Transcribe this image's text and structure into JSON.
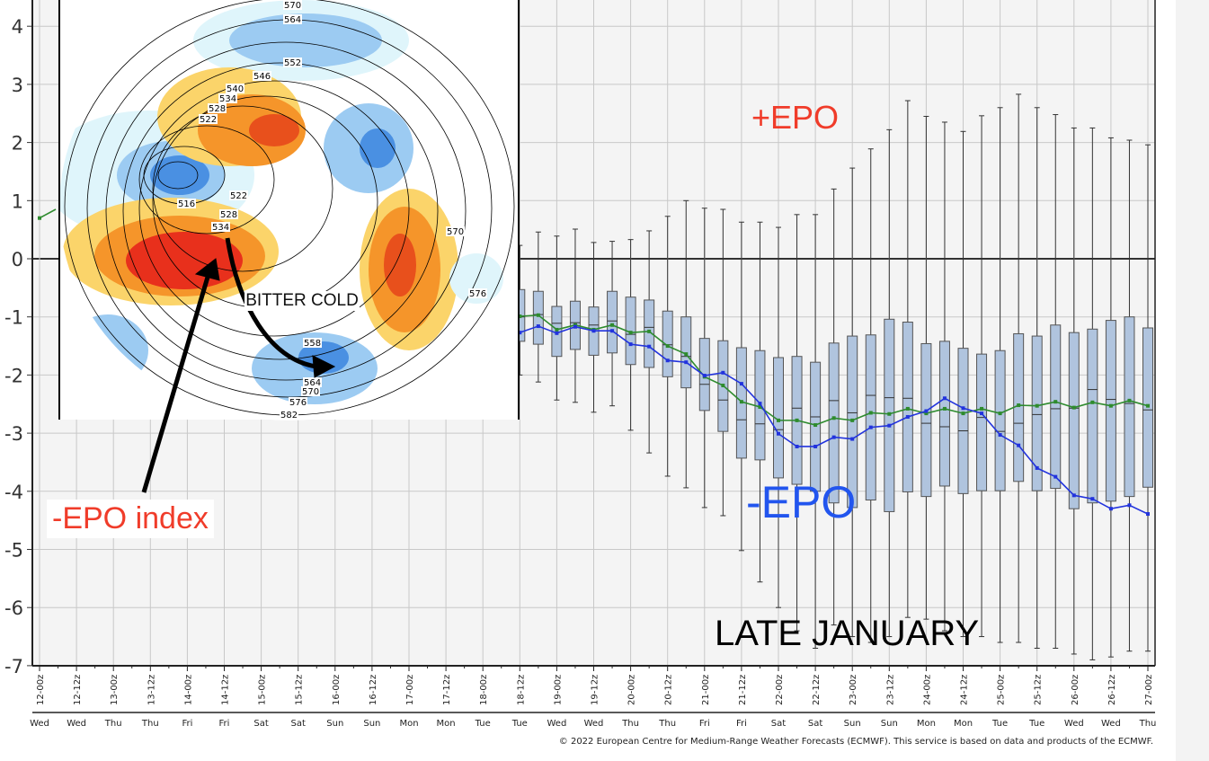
{
  "annotations": {
    "plus_epo": "+EPO",
    "minus_epo": "-EPO",
    "epo_index": "-EPO index",
    "late_january": "LATE JANUARY",
    "bitter_cold": "BITTER COLD"
  },
  "inset_map": {
    "contour_labels": [
      "570",
      "564",
      "552",
      "546",
      "540",
      "534",
      "528",
      "522",
      "516",
      "522",
      "528",
      "534",
      "570",
      "576",
      "558",
      "564",
      "570",
      "576",
      "582"
    ],
    "colors": {
      "warm_strong": "#e8301c",
      "warm": "#f5952a",
      "warm_light": "#fbd46a",
      "cold_strong": "#4a90e2",
      "cold": "#9ccbf2",
      "cold_light": "#dff5fb"
    }
  },
  "footer": {
    "copyright": "© 2022 European Centre for Medium-Range Weather Forecasts (ECMWF). This service is based on data and products of the ECMWF."
  },
  "colors": {
    "box_fill": "#b0c4de",
    "box_stroke": "#555555",
    "green_series": "#2e8b2e",
    "blue_series": "#2233dd",
    "plot_bg": "#f4f4f4",
    "grid": "#c8c8c8"
  },
  "chart_data": {
    "type": "box",
    "title": "",
    "xlabel": "",
    "ylabel": "",
    "ylim": [
      -7,
      4.4
    ],
    "yticks": [
      4,
      3,
      2,
      1,
      0,
      -1,
      -2,
      -3,
      -4,
      -5,
      -6,
      -7
    ],
    "grid": true,
    "x_tick_labels": [
      "12-00z",
      "12-12z",
      "13-00z",
      "13-12z",
      "14-00z",
      "14-12z",
      "15-00z",
      "15-12z",
      "16-00z",
      "16-12z",
      "17-00z",
      "17-12z",
      "18-00z",
      "18-12z",
      "19-00z",
      "19-12z",
      "20-00z",
      "20-12z",
      "21-00z",
      "21-12z",
      "22-00z",
      "22-12z",
      "23-00z",
      "23-12z",
      "24-00z",
      "24-12z",
      "25-00z",
      "25-12z",
      "26-00z",
      "26-12z",
      "27-00z"
    ],
    "x_day_labels": [
      "Wed",
      "Wed",
      "Thu",
      "Thu",
      "Fri",
      "Fri",
      "Sat",
      "Sat",
      "Sun",
      "Sun",
      "Mon",
      "Mon",
      "Tue",
      "Tue",
      "Wed",
      "Wed",
      "Thu",
      "Thu",
      "Fri",
      "Fri",
      "Sat",
      "Sat",
      "Sun",
      "Sun",
      "Mon",
      "Mon",
      "Tue",
      "Tue",
      "Wed",
      "Wed",
      "Thu"
    ],
    "step_hours": 6,
    "first_step_index": 26,
    "boxes": {
      "whisker_high": [
        0.23,
        0.46,
        0.39,
        0.51,
        0.28,
        0.3,
        0.33,
        0.48,
        0.73,
        1.0,
        0.87,
        0.85,
        0.63,
        0.63,
        0.54,
        0.76,
        0.76,
        1.2,
        1.56,
        1.89,
        2.22,
        2.72,
        2.45,
        2.35,
        2.19,
        2.46,
        2.6,
        2.83,
        2.6,
        2.48,
        2.25,
        2.25,
        2.08,
        2.04,
        1.96
      ],
      "q3": [
        -0.53,
        -0.56,
        -0.82,
        -0.73,
        -0.83,
        -0.56,
        -0.66,
        -0.71,
        -0.9,
        -1.0,
        -1.37,
        -1.41,
        -1.53,
        -1.58,
        -1.7,
        -1.68,
        -1.78,
        -1.45,
        -1.33,
        -1.31,
        -1.04,
        -1.09,
        -1.46,
        -1.42,
        -1.54,
        -1.64,
        -1.58,
        -1.29,
        -1.33,
        -1.14,
        -1.27,
        -1.21,
        -1.06,
        -1.0,
        -1.19
      ],
      "median": [
        -1.0,
        -0.96,
        -1.11,
        -1.1,
        -1.14,
        -1.07,
        -1.3,
        -1.18,
        -1.48,
        -1.68,
        -2.16,
        -2.43,
        -2.77,
        -2.84,
        -2.94,
        -2.57,
        -2.72,
        -2.44,
        -2.65,
        -2.35,
        -2.39,
        -2.4,
        -2.83,
        -2.89,
        -2.96,
        -2.73,
        -2.97,
        -2.83,
        -2.68,
        -2.58,
        -2.57,
        -2.25,
        -2.42,
        -2.49,
        -2.6
      ],
      "q1": [
        -1.42,
        -1.47,
        -1.68,
        -1.56,
        -1.66,
        -1.62,
        -1.82,
        -1.87,
        -2.03,
        -2.22,
        -2.61,
        -2.97,
        -3.43,
        -3.46,
        -3.77,
        -3.88,
        -4.0,
        -4.2,
        -4.28,
        -4.15,
        -4.35,
        -4.01,
        -4.09,
        -3.91,
        -4.04,
        -3.99,
        -3.99,
        -3.83,
        -3.99,
        -3.95,
        -4.3,
        -4.2,
        -4.17,
        -4.09,
        -3.93
      ],
      "whisker_low": [
        -2.0,
        -2.12,
        -2.43,
        -2.47,
        -2.64,
        -2.53,
        -2.95,
        -3.34,
        -3.74,
        -3.94,
        -4.28,
        -4.42,
        -5.02,
        -5.56,
        -6.0,
        -6.4,
        -6.7,
        -6.3,
        -6.5,
        -6.6,
        -6.5,
        -6.17,
        -6.2,
        -6.4,
        -6.5,
        -6.5,
        -6.6,
        -6.6,
        -6.7,
        -6.7,
        -6.8,
        -6.9,
        -6.85,
        -6.75,
        -6.75
      ]
    },
    "series": [
      {
        "name": "green",
        "color": "#2e8b2e",
        "values": [
          -0.99,
          -0.97,
          -1.22,
          -1.14,
          -1.22,
          -1.14,
          -1.27,
          -1.25,
          -1.5,
          -1.64,
          -2.03,
          -2.18,
          -2.46,
          -2.55,
          -2.78,
          -2.78,
          -2.86,
          -2.74,
          -2.78,
          -2.65,
          -2.67,
          -2.58,
          -2.66,
          -2.58,
          -2.66,
          -2.58,
          -2.66,
          -2.52,
          -2.53,
          -2.46,
          -2.56,
          -2.47,
          -2.53,
          -2.44,
          -2.53
        ]
      },
      {
        "name": "blue",
        "color": "#2233dd",
        "values": [
          -1.27,
          -1.16,
          -1.28,
          -1.17,
          -1.24,
          -1.24,
          -1.47,
          -1.51,
          -1.75,
          -1.78,
          -2.01,
          -1.96,
          -2.15,
          -2.49,
          -3.01,
          -3.23,
          -3.23,
          -3.07,
          -3.1,
          -2.9,
          -2.87,
          -2.72,
          -2.62,
          -2.4,
          -2.57,
          -2.66,
          -3.03,
          -3.21,
          -3.6,
          -3.75,
          -4.07,
          -4.13,
          -4.3,
          -4.24,
          -4.39
        ]
      }
    ],
    "early_green_point": {
      "step_index": 0,
      "value": 0.7
    }
  }
}
